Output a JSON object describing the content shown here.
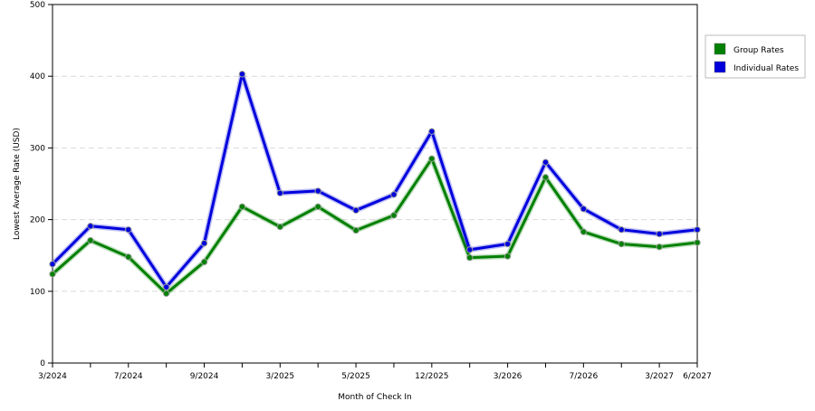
{
  "chart_data": {
    "type": "line",
    "xlabel": "Month of Check In",
    "ylabel": "Lowest Average Rate (USD)",
    "ylim": [
      0,
      500
    ],
    "yticks": [
      0,
      100,
      200,
      300,
      400,
      500
    ],
    "x_labels": [
      "3/2024",
      "",
      "7/2024",
      "",
      "9/2024",
      "",
      "3/2025",
      "",
      "5/2025",
      "",
      "12/2025",
      "",
      "3/2026",
      "",
      "7/2026",
      "",
      "3/2027",
      "6/2027"
    ],
    "grid": "horizontal dashed",
    "legend_position": "right",
    "series": [
      {
        "name": "Group Rates",
        "color": "#008000",
        "values": [
          124,
          171,
          148,
          97,
          141,
          218,
          190,
          218,
          185,
          206,
          285,
          147,
          149,
          259,
          183,
          166,
          162,
          168
        ]
      },
      {
        "name": "Individual Rates",
        "color": "#0000dd",
        "values": [
          138,
          191,
          186,
          106,
          167,
          403,
          237,
          240,
          213,
          235,
          323,
          158,
          166,
          280,
          215,
          186,
          180,
          186
        ]
      }
    ]
  }
}
